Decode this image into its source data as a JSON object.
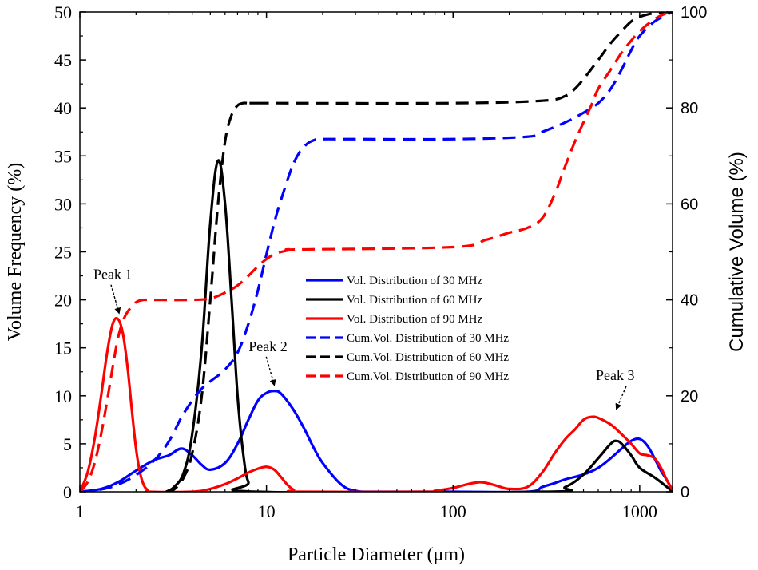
{
  "chart_data": {
    "type": "line",
    "title": "",
    "xlabel": "Particle Diameter (μm)",
    "ylabel": "Volume Frequency (%)",
    "y2label": "Cumulative Volume (%)",
    "xscale": "log",
    "xlim": [
      1,
      1500
    ],
    "ylim": [
      0,
      50
    ],
    "y2lim": [
      0,
      100
    ],
    "xticks": [
      1,
      10,
      100,
      1000
    ],
    "xtick_labels": [
      "1",
      "10",
      "100",
      "1000"
    ],
    "yticks": [
      0,
      5,
      10,
      15,
      20,
      25,
      30,
      35,
      40,
      45,
      50
    ],
    "ytick_labels": [
      "0",
      "5",
      "10",
      "15",
      "20",
      "25",
      "30",
      "35",
      "40",
      "45",
      "50"
    ],
    "y2ticks": [
      0,
      20,
      40,
      60,
      80,
      100
    ],
    "y2tick_labels": [
      "0",
      "20",
      "40",
      "60",
      "80",
      "100"
    ],
    "legend_position": "center-right",
    "series": [
      {
        "name": "Vol. Distribution of 30 MHz",
        "color": "#0000ff",
        "style": "solid",
        "axis": "left",
        "x": [
          1,
          1.3,
          1.6,
          2,
          2.5,
          3,
          3.5,
          4,
          4.5,
          5,
          6,
          7,
          8,
          9,
          10,
          11,
          12,
          14,
          16,
          18,
          20,
          25,
          30,
          40,
          100,
          250,
          300,
          350,
          400,
          500,
          600,
          700,
          800,
          900,
          1000,
          1100,
          1200,
          1300,
          1400,
          1500
        ],
        "y": [
          0,
          0.3,
          1,
          2.2,
          3.3,
          3.8,
          4.5,
          3.8,
          2.8,
          2.3,
          3,
          5,
          7.5,
          9.5,
          10.3,
          10.5,
          10.2,
          8.5,
          6.5,
          4.5,
          3,
          0.8,
          0.1,
          0,
          0,
          0,
          0.5,
          0.9,
          1.3,
          1.8,
          2.5,
          3.5,
          4.5,
          5.3,
          5.5,
          4.8,
          3.5,
          2.2,
          1.2,
          0.1
        ]
      },
      {
        "name": "Vol. Distribution of 60 MHz",
        "color": "#000000",
        "style": "solid",
        "axis": "left",
        "x": [
          2.9,
          3.2,
          3.6,
          4,
          4.5,
          5,
          5.5,
          6,
          6.5,
          7,
          7.5,
          8,
          9,
          300,
          400,
          500,
          600,
          700,
          750,
          800,
          900,
          1000,
          1200,
          1400,
          1500
        ],
        "y": [
          0,
          0.5,
          2,
          6,
          15,
          28,
          34.5,
          30,
          20,
          10,
          4,
          1,
          0,
          0,
          0.5,
          1.8,
          3.5,
          5,
          5.3,
          5,
          3.8,
          2.5,
          1.5,
          0.5,
          0
        ]
      },
      {
        "name": "Vol. Distribution of 90 MHz",
        "color": "#ff0000",
        "style": "solid",
        "axis": "left",
        "x": [
          1,
          1.1,
          1.2,
          1.3,
          1.4,
          1.5,
          1.6,
          1.7,
          1.8,
          1.9,
          2,
          2.1,
          2.2,
          2.3,
          2.4,
          4,
          5,
          6,
          7,
          8,
          9,
          10,
          11,
          12,
          13,
          14,
          15,
          70,
          80,
          100,
          120,
          140,
          160,
          180,
          200,
          250,
          300,
          350,
          400,
          450,
          500,
          550,
          600,
          700,
          800,
          900,
          1000,
          1100,
          1200,
          1300,
          1400,
          1500
        ],
        "y": [
          0,
          2,
          5.5,
          10,
          14.5,
          17.5,
          18,
          16.5,
          13,
          8.5,
          4.5,
          2,
          0.7,
          0.2,
          0,
          0,
          0.3,
          0.8,
          1.4,
          2,
          2.4,
          2.6,
          2.3,
          1.5,
          0.7,
          0.2,
          0,
          0,
          0.1,
          0.4,
          0.8,
          1,
          0.8,
          0.5,
          0.3,
          0.5,
          2,
          4,
          5.5,
          6.5,
          7.5,
          7.8,
          7.7,
          7,
          6,
          5,
          4,
          3.8,
          3.5,
          2.5,
          1.2,
          0.2
        ]
      },
      {
        "name": "Cum.Vol. Distribution of 30 MHz",
        "color": "#0000ff",
        "style": "dashed",
        "axis": "right",
        "x": [
          1,
          1.3,
          1.6,
          2,
          2.5,
          3,
          3.5,
          4,
          4.5,
          5,
          6,
          7,
          8,
          9,
          10,
          11,
          12,
          14,
          16,
          18,
          20,
          25,
          30,
          100,
          250,
          300,
          400,
          500,
          600,
          700,
          800,
          900,
          1000,
          1200,
          1500
        ],
        "y": [
          0,
          0.5,
          1.5,
          3.5,
          6.5,
          10.5,
          15.5,
          19,
          21.5,
          23,
          25.5,
          29,
          35,
          42,
          49.5,
          56,
          61,
          68.5,
          72,
          73.3,
          73.5,
          73.5,
          73.5,
          73.5,
          74,
          75,
          77,
          79,
          81,
          84,
          88,
          92,
          95,
          98,
          100
        ]
      },
      {
        "name": "Cum.Vol. Distribution of 60 MHz",
        "color": "#000000",
        "style": "dashed",
        "axis": "right",
        "x": [
          2.9,
          3.2,
          3.6,
          4,
          4.5,
          5,
          5.5,
          6,
          6.5,
          7,
          7.5,
          8,
          9,
          10,
          100,
          300,
          400,
          450,
          500,
          600,
          700,
          800,
          900,
          1000,
          1200,
          1400,
          1500
        ],
        "y": [
          0,
          0.5,
          3,
          8,
          20,
          40,
          60,
          73,
          78.5,
          80.5,
          81,
          81,
          81,
          81,
          81,
          81.5,
          82.5,
          84,
          86,
          90,
          93.5,
          96,
          98,
          99,
          99.8,
          100,
          100
        ]
      },
      {
        "name": "Cum.Vol. Distribution of 90 MHz",
        "color": "#ff0000",
        "style": "dashed",
        "axis": "right",
        "x": [
          1,
          1.1,
          1.2,
          1.3,
          1.4,
          1.5,
          1.6,
          1.7,
          1.8,
          2,
          2.2,
          2.4,
          4,
          5,
          6,
          7,
          8,
          9,
          10,
          11,
          12,
          14,
          15,
          100,
          150,
          200,
          250,
          300,
          350,
          400,
          450,
          500,
          550,
          600,
          700,
          800,
          900,
          1000,
          1200,
          1400,
          1500
        ],
        "y": [
          0,
          2,
          6,
          12,
          19,
          26,
          32,
          35.5,
          37.5,
          39.5,
          40,
          40,
          40,
          40.3,
          41.5,
          43,
          45,
          47,
          48.5,
          49.5,
          50,
          50.5,
          50.5,
          51,
          52.5,
          54,
          55,
          57,
          62,
          68,
          73,
          77,
          80.5,
          84,
          88,
          91.5,
          94,
          96,
          98.5,
          99.8,
          100
        ]
      }
    ],
    "annotations": [
      {
        "text": "Peak 1",
        "x": 1.62,
        "y": 18,
        "text_side": "above-left"
      },
      {
        "text": "Peak 2",
        "x": 11,
        "y": 10.5,
        "text_side": "above-left"
      },
      {
        "text": "Peak 3",
        "x": 830,
        "y": 8,
        "text_side": "above-right"
      }
    ]
  }
}
